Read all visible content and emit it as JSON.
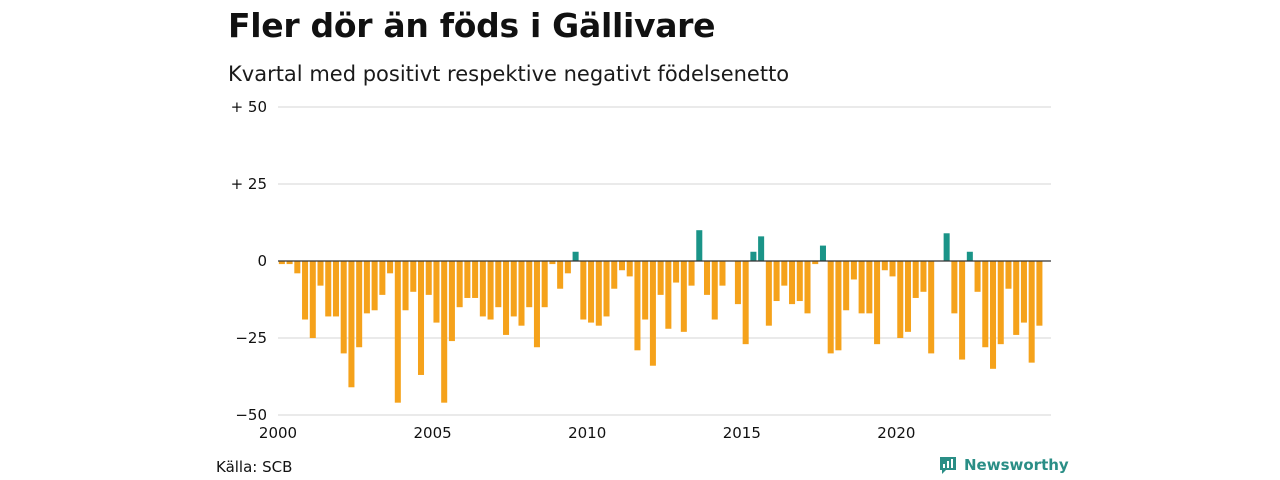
{
  "title": "Fler dör än föds i Gällivare",
  "subtitle": "Kvartal med positivt respektive negativt födelsenetto",
  "source": "Källa: SCB",
  "brand": "Newsworthy",
  "colors": {
    "positive": "#1a9488",
    "negative": "#f5a21b",
    "grid": "#d6d6d6",
    "zero": "#333333"
  },
  "chart_data": {
    "type": "bar",
    "title": "Fler dör än föds i Gällivare",
    "subtitle": "Kvartal med positivt respektive negativt födelsenetto",
    "xlabel": "",
    "ylabel": "",
    "ylim": [
      -50,
      50
    ],
    "xlim": [
      2000,
      2025
    ],
    "x_ticks": [
      2000,
      2005,
      2010,
      2015,
      2020
    ],
    "x_tick_labels": [
      "2000",
      "2005",
      "2010",
      "2015",
      "2020"
    ],
    "y_ticks": [
      50,
      25,
      0,
      -25,
      -50
    ],
    "y_tick_labels": [
      "+ 50",
      "+ 25",
      "0",
      "−25",
      "−50"
    ],
    "grid": true,
    "start_year": 2000,
    "periods_per_year": 4,
    "values": [
      -1,
      -1,
      -4,
      -19,
      -25,
      -8,
      -18,
      -18,
      -30,
      -41,
      -28,
      -17,
      -16,
      -11,
      -4,
      -46,
      -16,
      -10,
      -37,
      -11,
      -20,
      -46,
      -26,
      -15,
      -12,
      -12,
      -18,
      -19,
      -15,
      -24,
      -18,
      -21,
      -15,
      -28,
      -15,
      -1,
      -9,
      -4,
      3,
      -19,
      -20,
      -21,
      -18,
      -9,
      -3,
      -5,
      -29,
      -19,
      -34,
      -11,
      -22,
      -7,
      -23,
      -8,
      10,
      -11,
      -19,
      -8,
      0,
      -14,
      -27,
      3,
      8,
      -21,
      -13,
      -8,
      -14,
      -13,
      -17,
      -1,
      5,
      -30,
      -29,
      -16,
      -6,
      -17,
      -17,
      -27,
      -3,
      -5,
      -25,
      -23,
      -12,
      -10,
      -30,
      0,
      9,
      -17,
      -32,
      3,
      -10,
      -28,
      -35,
      -27,
      -9,
      -24,
      -20,
      -33,
      -21
    ]
  }
}
